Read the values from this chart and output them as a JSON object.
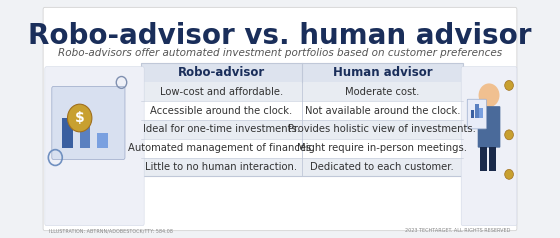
{
  "title": "Robo-advisor vs. human advisor",
  "subtitle": "Robo-advisors offer automated investment portfolios based on customer preferences",
  "col1_header": "Robo-advisor",
  "col2_header": "Human advisor",
  "robo_rows": [
    "Low-cost and affordable.",
    "Accessible around the clock.",
    "Ideal for one-time investments.",
    "Automated management of finances.",
    "Little to no human interaction."
  ],
  "human_rows": [
    "Moderate cost.",
    "Not available around the clock.",
    "Provides holistic view of investments.",
    "Might require in-person meetings.",
    "Dedicated to each customer."
  ],
  "bg_color": "#f0f2f5",
  "card_bg": "#ffffff",
  "row_alt_color": "#e8ecf2",
  "row_white": "#ffffff",
  "header_color": "#1a2e5a",
  "text_color": "#333333",
  "col_header_color": "#1a2e5a",
  "divider_color": "#c0c8d8",
  "title_fontsize": 20,
  "subtitle_fontsize": 7.5,
  "header_fontsize": 8.5,
  "row_fontsize": 7.2
}
